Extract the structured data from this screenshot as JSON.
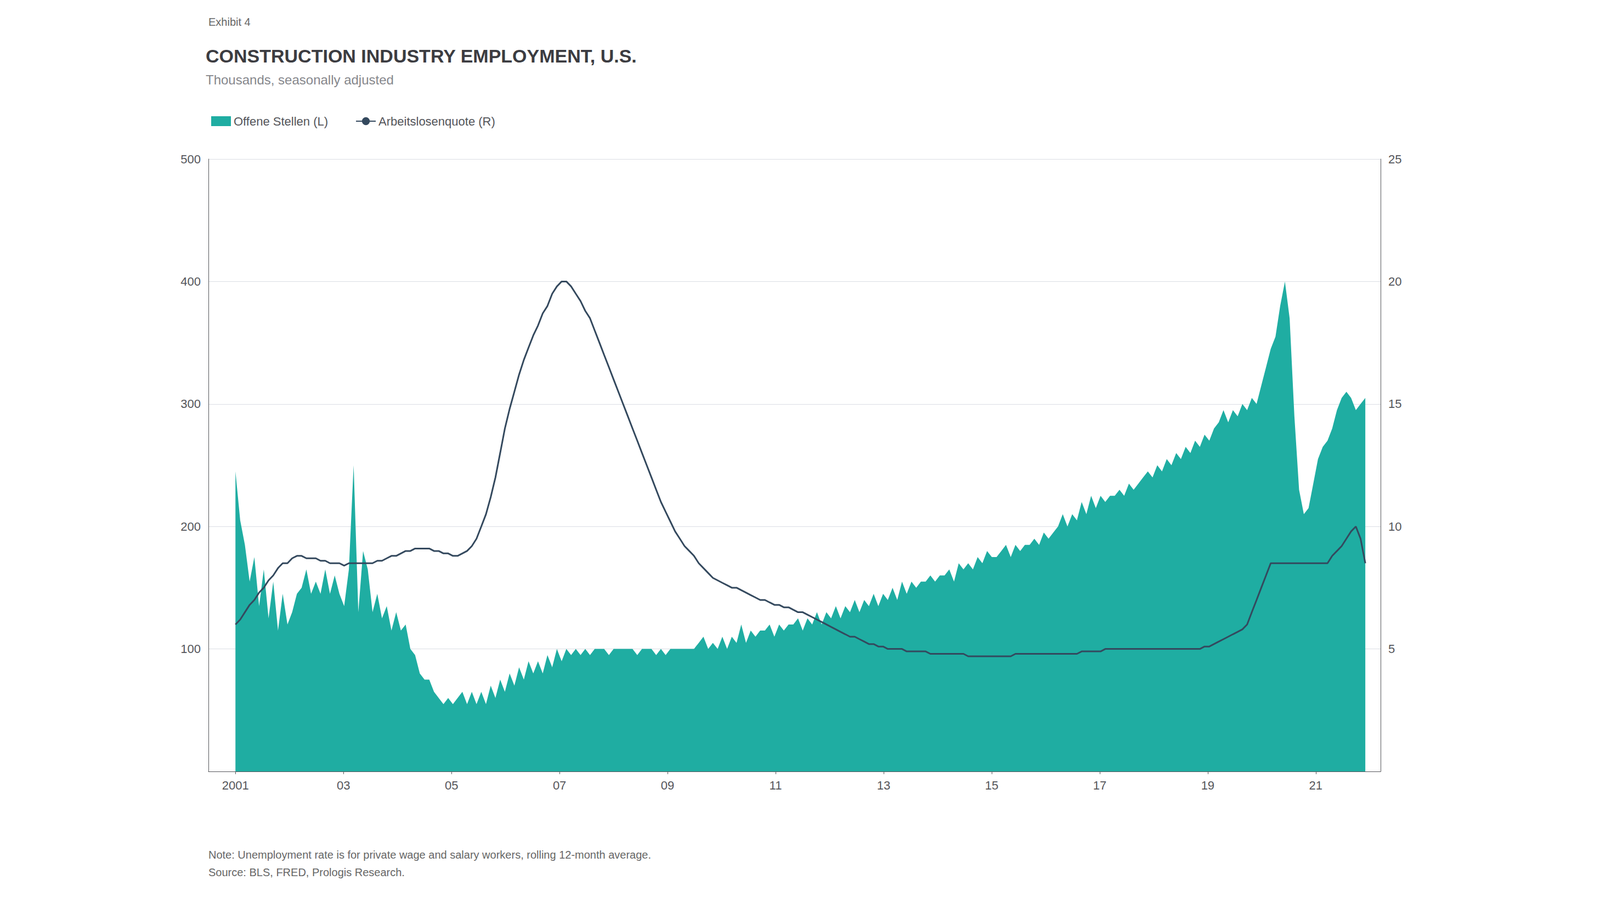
{
  "chart_data": {
    "type": "line",
    "title": "CONSTRUCTION INDUSTRY EMPLOYMENT, U.S.",
    "subtitle": "Thousands, seasonally adjusted",
    "annotations": [
      "Exhibit 4",
      "Note: Unemployment rate is for private wage and salary workers, rolling 12-month average.\nSource: BLS, FRED, Prologis Research."
    ],
    "legend": "upper left",
    "grid": true,
    "xlim": [
      2000.5,
      2022.2
    ],
    "xticks": [
      2001,
      {
        "value": 2003,
        "label": "03"
      },
      {
        "value": 2005,
        "label": "05"
      },
      {
        "value": 2007,
        "label": "07"
      },
      {
        "value": 2009,
        "label": "09"
      },
      {
        "value": 2011,
        "label": "11"
      },
      {
        "value": 2013,
        "label": "13"
      },
      {
        "value": 2015,
        "label": "15"
      },
      {
        "value": 2017,
        "label": "17"
      },
      {
        "value": 2019,
        "label": "19"
      },
      {
        "value": 2021,
        "label": "21"
      }
    ],
    "ylim": [
      0,
      500
    ],
    "yticks": [
      100,
      200,
      300,
      400,
      500
    ],
    "y2lim": [
      0,
      25
    ],
    "y2ticks": [
      5,
      10,
      15,
      20,
      25
    ],
    "x": [
      2001,
      2001.088,
      2001.175,
      2001.263,
      2001.35,
      2001.438,
      2001.525,
      2001.613,
      2001.7,
      2001.788,
      2001.875,
      2001.963,
      2002.05,
      2002.138,
      2002.225,
      2002.313,
      2002.4,
      2002.488,
      2002.575,
      2002.663,
      2002.75,
      2002.838,
      2002.925,
      2003.013,
      2003.1,
      2003.188,
      2003.275,
      2003.363,
      2003.45,
      2003.538,
      2003.626,
      2003.713,
      2003.801,
      2003.888,
      2003.976,
      2004.063,
      2004.151,
      2004.238,
      2004.326,
      2004.413,
      2004.501,
      2004.588,
      2004.676,
      2004.763,
      2004.851,
      2004.938,
      2005.026,
      2005.113,
      2005.201,
      2005.288,
      2005.376,
      2005.463,
      2005.551,
      2005.638,
      2005.726,
      2005.813,
      2005.901,
      2005.988,
      2006.076,
      2006.164,
      2006.251,
      2006.339,
      2006.426,
      2006.514,
      2006.601,
      2006.689,
      2006.776,
      2006.864,
      2006.951,
      2007.039,
      2007.126,
      2007.214,
      2007.301,
      2007.389,
      2007.476,
      2007.564,
      2007.651,
      2007.739,
      2007.826,
      2007.914,
      2008.001,
      2008.089,
      2008.176,
      2008.264,
      2008.351,
      2008.439,
      2008.526,
      2008.614,
      2008.702,
      2008.789,
      2008.877,
      2008.964,
      2009.052,
      2009.139,
      2009.227,
      2009.314,
      2009.402,
      2009.489,
      2009.577,
      2009.664,
      2009.752,
      2009.839,
      2009.927,
      2010.014,
      2010.102,
      2010.189,
      2010.277,
      2010.364,
      2010.452,
      2010.539,
      2010.627,
      2010.714,
      2010.802,
      2010.889,
      2010.977,
      2011.065,
      2011.152,
      2011.24,
      2011.327,
      2011.415,
      2011.502,
      2011.59,
      2011.677,
      2011.765,
      2011.852,
      2011.94,
      2012.027,
      2012.115,
      2012.202,
      2012.29,
      2012.377,
      2012.465,
      2012.552,
      2012.64,
      2012.727,
      2012.815,
      2012.902,
      2012.99,
      2013.077,
      2013.165,
      2013.252,
      2013.34,
      2013.427,
      2013.515,
      2013.603,
      2013.69,
      2013.778,
      2013.865,
      2013.953,
      2014.04,
      2014.128,
      2014.215,
      2014.303,
      2014.39,
      2014.478,
      2014.565,
      2014.653,
      2014.74,
      2014.828,
      2014.915,
      2015.003,
      2015.09,
      2015.178,
      2015.265,
      2015.353,
      2015.44,
      2015.528,
      2015.615,
      2015.703,
      2015.79,
      2015.878,
      2015.965,
      2016.053,
      2016.141,
      2016.228,
      2016.316,
      2016.403,
      2016.491,
      2016.578,
      2016.666,
      2016.753,
      2016.841,
      2016.928,
      2017.016,
      2017.103,
      2017.191,
      2017.278,
      2017.366,
      2017.453,
      2017.541,
      2017.628,
      2017.716,
      2017.803,
      2017.891,
      2017.978,
      2018.066,
      2018.153,
      2018.241,
      2018.328,
      2018.416,
      2018.503,
      2018.591,
      2018.679,
      2018.766,
      2018.854,
      2018.941,
      2019.029,
      2019.116,
      2019.204,
      2019.291,
      2019.379,
      2019.466,
      2019.554,
      2019.641,
      2019.729,
      2019.816,
      2019.904,
      2019.991,
      2020.079,
      2020.166,
      2020.254,
      2020.341,
      2020.429,
      2020.516,
      2020.604,
      2020.691,
      2020.779,
      2020.866,
      2020.954,
      2021.041,
      2021.129,
      2021.217,
      2021.304,
      2021.392,
      2021.479,
      2021.567,
      2021.654,
      2021.742,
      2021.829,
      2021.917
    ],
    "series": [
      {
        "name": "Offene Stellen (L)",
        "type": "area",
        "color": "#1fada2",
        "values": [
          245,
          205,
          185,
          155,
          175,
          135,
          165,
          125,
          155,
          115,
          145,
          120,
          130,
          145,
          150,
          165,
          145,
          155,
          145,
          165,
          145,
          160,
          145,
          135,
          165,
          250,
          130,
          180,
          165,
          130,
          145,
          125,
          135,
          115,
          130,
          115,
          120,
          100,
          95,
          80,
          75,
          75,
          65,
          60,
          55,
          60,
          55,
          60,
          65,
          55,
          65,
          55,
          65,
          55,
          70,
          60,
          75,
          65,
          80,
          70,
          85,
          75,
          90,
          80,
          90,
          80,
          95,
          85,
          100,
          90,
          100,
          95,
          100,
          95,
          100,
          95,
          100,
          100,
          100,
          95,
          100,
          100,
          100,
          100,
          100,
          95,
          100,
          100,
          100,
          95,
          100,
          95,
          100,
          100,
          100,
          100,
          100,
          100,
          105,
          110,
          100,
          105,
          100,
          110,
          100,
          110,
          105,
          120,
          105,
          115,
          110,
          115,
          115,
          120,
          110,
          120,
          115,
          120,
          120,
          125,
          115,
          125,
          120,
          130,
          120,
          130,
          125,
          135,
          125,
          135,
          130,
          140,
          130,
          140,
          135,
          145,
          135,
          145,
          140,
          150,
          140,
          155,
          145,
          155,
          150,
          155,
          155,
          160,
          155,
          160,
          160,
          165,
          155,
          170,
          165,
          170,
          165,
          175,
          170,
          180,
          175,
          175,
          180,
          185,
          175,
          185,
          180,
          185,
          185,
          190,
          185,
          195,
          190,
          195,
          200,
          210,
          200,
          210,
          205,
          220,
          210,
          225,
          215,
          225,
          220,
          225,
          225,
          230,
          225,
          235,
          230,
          235,
          240,
          245,
          240,
          250,
          245,
          255,
          250,
          260,
          255,
          265,
          260,
          270,
          265,
          275,
          270,
          280,
          285,
          295,
          285,
          295,
          290,
          300,
          295,
          305,
          300,
          315,
          330,
          345,
          355,
          380,
          400,
          370,
          290,
          230,
          210,
          215,
          235,
          255,
          265,
          270,
          280,
          295,
          305,
          310,
          305,
          295,
          300,
          305
        ]
      },
      {
        "name": "Arbeitslosenquote (R)",
        "type": "line",
        "axis": "y2",
        "color": "#34495e",
        "values": [
          6.0,
          6.2,
          6.5,
          6.8,
          7.0,
          7.3,
          7.5,
          7.8,
          8.0,
          8.3,
          8.5,
          8.5,
          8.7,
          8.8,
          8.8,
          8.7,
          8.7,
          8.7,
          8.6,
          8.6,
          8.5,
          8.5,
          8.5,
          8.4,
          8.5,
          8.5,
          8.5,
          8.5,
          8.5,
          8.5,
          8.6,
          8.6,
          8.7,
          8.8,
          8.8,
          8.9,
          9.0,
          9.0,
          9.1,
          9.1,
          9.1,
          9.1,
          9.0,
          9.0,
          8.9,
          8.9,
          8.8,
          8.8,
          8.9,
          9.0,
          9.2,
          9.5,
          10.0,
          10.5,
          11.2,
          12.0,
          13.0,
          14.0,
          14.8,
          15.5,
          16.2,
          16.8,
          17.3,
          17.8,
          18.2,
          18.7,
          19.0,
          19.5,
          19.8,
          20.0,
          20.0,
          19.8,
          19.5,
          19.2,
          18.8,
          18.5,
          18.0,
          17.5,
          17.0,
          16.5,
          16.0,
          15.5,
          15.0,
          14.5,
          14.0,
          13.5,
          13.0,
          12.5,
          12.0,
          11.5,
          11.0,
          10.6,
          10.2,
          9.8,
          9.5,
          9.2,
          9.0,
          8.8,
          8.5,
          8.3,
          8.1,
          7.9,
          7.8,
          7.7,
          7.6,
          7.5,
          7.5,
          7.4,
          7.3,
          7.2,
          7.1,
          7.0,
          7.0,
          6.9,
          6.8,
          6.8,
          6.7,
          6.7,
          6.6,
          6.5,
          6.5,
          6.4,
          6.3,
          6.2,
          6.1,
          6.0,
          5.9,
          5.8,
          5.7,
          5.6,
          5.5,
          5.5,
          5.4,
          5.3,
          5.2,
          5.2,
          5.1,
          5.1,
          5.0,
          5.0,
          5.0,
          5.0,
          4.9,
          4.9,
          4.9,
          4.9,
          4.9,
          4.8,
          4.8,
          4.8,
          4.8,
          4.8,
          4.8,
          4.8,
          4.8,
          4.7,
          4.7,
          4.7,
          4.7,
          4.7,
          4.7,
          4.7,
          4.7,
          4.7,
          4.7,
          4.8,
          4.8,
          4.8,
          4.8,
          4.8,
          4.8,
          4.8,
          4.8,
          4.8,
          4.8,
          4.8,
          4.8,
          4.8,
          4.8,
          4.9,
          4.9,
          4.9,
          4.9,
          4.9,
          5.0,
          5.0,
          5.0,
          5.0,
          5.0,
          5.0,
          5.0,
          5.0,
          5.0,
          5.0,
          5.0,
          5.0,
          5.0,
          5.0,
          5.0,
          5.0,
          5.0,
          5.0,
          5.0,
          5.0,
          5.0,
          5.1,
          5.1,
          5.2,
          5.3,
          5.4,
          5.5,
          5.6,
          5.7,
          5.8,
          6.0,
          6.5,
          7.0,
          7.5,
          8.0,
          8.5,
          8.5,
          8.5,
          8.5,
          8.5,
          8.5,
          8.5,
          8.5,
          8.5,
          8.5,
          8.5,
          8.5,
          8.5,
          8.8,
          9.0,
          9.2,
          9.5,
          9.8,
          10.0,
          9.5,
          8.5
        ]
      }
    ]
  }
}
